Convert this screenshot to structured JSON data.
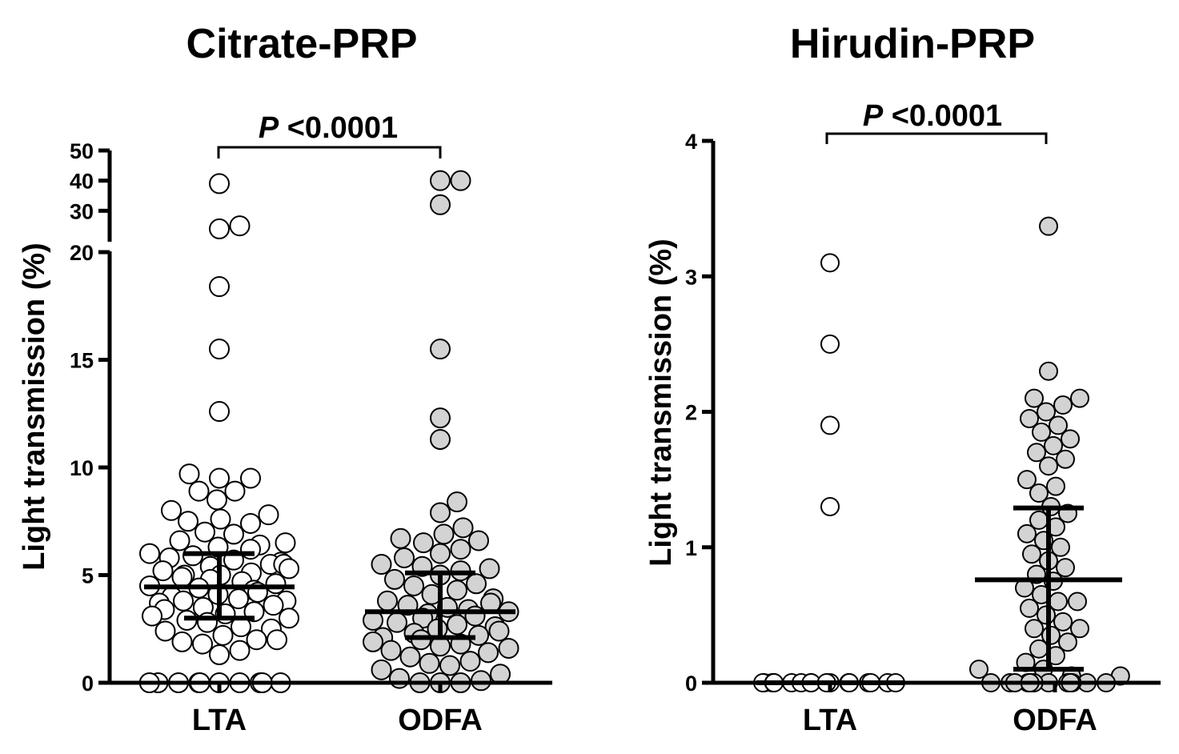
{
  "chart_data": [
    {
      "type": "scatter",
      "title": "Citrate-PRP",
      "ylabel": "Light transmission (%)",
      "xlabel": "",
      "categories": [
        "LTA",
        "ODFA"
      ],
      "y_axis": {
        "broken": true,
        "lower_segment": [
          0,
          20
        ],
        "upper_segment": [
          20,
          50
        ],
        "ticks": [
          "0",
          "5",
          "10",
          "15",
          "20",
          "30",
          "40",
          "50"
        ]
      },
      "annotation": {
        "label_italic": "P",
        "label_rest": " <0.0001"
      },
      "colors": {
        "LTA": "#ffffff",
        "ODFA": "#d3d3d3"
      },
      "series": [
        {
          "category": "LTA",
          "mean": 4.45,
          "error_low": 3.0,
          "error_high": 6.0,
          "values": [
            39,
            25,
            24,
            18.4,
            15.5,
            12.6,
            9.7,
            9.5,
            9.5,
            8.9,
            8.9,
            8.5,
            8.0,
            7.8,
            7.6,
            7.5,
            7.4,
            7.0,
            6.9,
            6.6,
            6.5,
            6.4,
            6.3,
            6.2,
            6.0,
            5.9,
            5.8,
            5.7,
            5.6,
            5.5,
            5.5,
            5.4,
            5.3,
            5.2,
            5.1,
            5.0,
            5.0,
            4.9,
            4.8,
            4.7,
            4.6,
            4.5,
            4.4,
            4.3,
            4.2,
            4.1,
            4.0,
            3.9,
            3.8,
            3.8,
            3.7,
            3.6,
            3.5,
            3.4,
            3.3,
            3.2,
            3.1,
            3.0,
            2.9,
            2.8,
            2.6,
            2.5,
            2.4,
            2.2,
            2.0,
            2.0,
            1.9,
            1.8,
            1.5,
            1.3,
            0,
            0,
            0,
            0,
            0,
            0,
            0,
            0,
            0,
            0
          ]
        },
        {
          "category": "ODFA",
          "mean": 3.3,
          "error_low": 2.1,
          "error_high": 5.1,
          "values": [
            40,
            40,
            32,
            15.5,
            12.3,
            11.3,
            8.4,
            7.9,
            7.2,
            6.9,
            6.7,
            6.6,
            6.5,
            6.2,
            6.0,
            5.8,
            5.5,
            5.4,
            5.3,
            5.2,
            5.0,
            4.8,
            4.6,
            4.5,
            4.3,
            4.1,
            3.9,
            3.8,
            3.7,
            3.6,
            3.5,
            3.4,
            3.3,
            3.2,
            3.1,
            3.0,
            2.9,
            2.8,
            2.7,
            2.6,
            2.5,
            2.4,
            2.3,
            2.2,
            2.1,
            2.0,
            1.9,
            1.8,
            1.7,
            1.6,
            1.5,
            1.4,
            1.2,
            1.0,
            0.9,
            0.8,
            0.6,
            0.4,
            0.2,
            0.1,
            0,
            0,
            0
          ]
        }
      ]
    },
    {
      "type": "scatter",
      "title": "Hirudin-PRP",
      "ylabel": "Light transmission (%)",
      "xlabel": "",
      "categories": [
        "LTA",
        "ODFA"
      ],
      "ylim": [
        0,
        4
      ],
      "y_axis": {
        "ticks": [
          "0",
          "1",
          "2",
          "3",
          "4"
        ]
      },
      "annotation": {
        "label_italic": "P",
        "label_rest": " <0.0001"
      },
      "colors": {
        "LTA": "#ffffff",
        "ODFA": "#d3d3d3"
      },
      "series": [
        {
          "category": "LTA",
          "mean": 0.0,
          "error_low": 0.0,
          "error_high": 0.0,
          "values": [
            3.1,
            2.5,
            1.9,
            1.3,
            0,
            0,
            0,
            0,
            0,
            0,
            0,
            0,
            0,
            0,
            0,
            0,
            0,
            0,
            0,
            0,
            0,
            0
          ]
        },
        {
          "category": "ODFA",
          "mean": 0.76,
          "error_low": 0.1,
          "error_high": 1.29,
          "values": [
            3.37,
            2.3,
            2.1,
            2.1,
            2.05,
            2.0,
            1.95,
            1.9,
            1.85,
            1.8,
            1.75,
            1.7,
            1.65,
            1.6,
            1.5,
            1.45,
            1.4,
            1.3,
            1.25,
            1.2,
            1.15,
            1.1,
            1.05,
            1.0,
            0.95,
            0.9,
            0.85,
            0.8,
            0.75,
            0.7,
            0.65,
            0.6,
            0.6,
            0.55,
            0.5,
            0.45,
            0.4,
            0.4,
            0.35,
            0.3,
            0.25,
            0.2,
            0.15,
            0.1,
            0.1,
            0.05,
            0.05,
            0,
            0,
            0,
            0,
            0,
            0,
            0,
            0,
            0,
            0,
            0,
            0,
            0,
            0
          ]
        }
      ]
    }
  ]
}
